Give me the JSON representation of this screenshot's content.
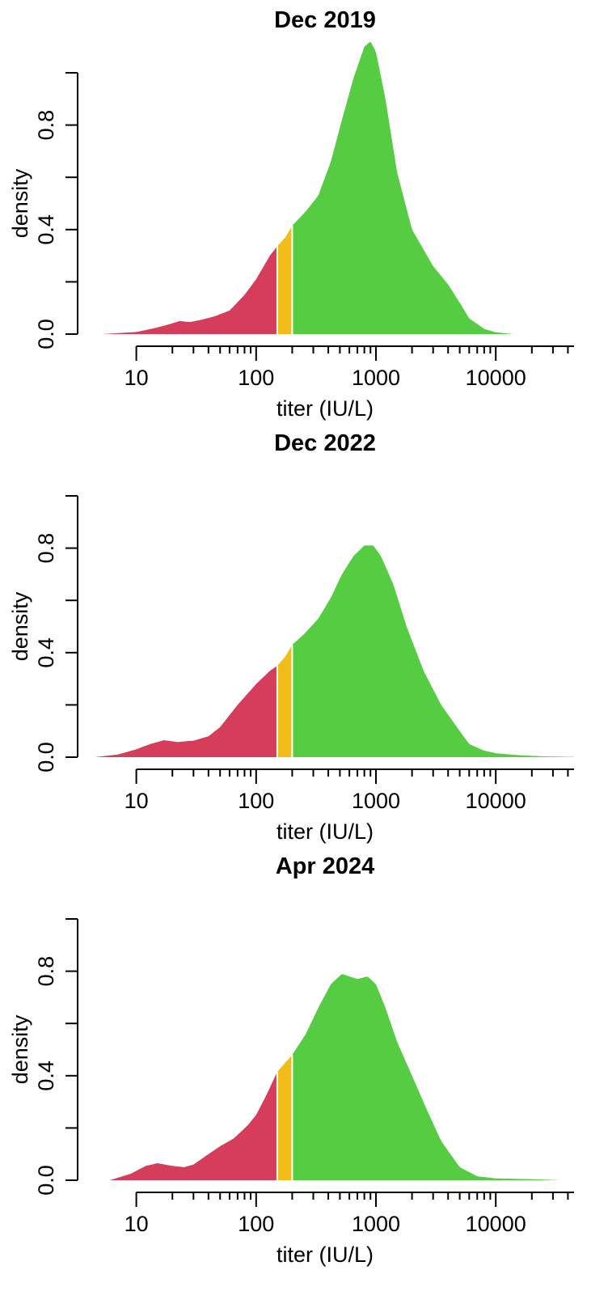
{
  "chart_data": [
    {
      "type": "area",
      "title": "Dec 2019",
      "xlabel": "titer (IU/L)",
      "ylabel": "density",
      "x_scale": "log10",
      "xlim": [
        5,
        45000
      ],
      "ylim": [
        0,
        1.0
      ],
      "x_ticks": [
        10,
        100,
        1000,
        10000
      ],
      "x_tick_labels": [
        "10",
        "100",
        "1000",
        "10000"
      ],
      "y_ticks": [
        0,
        0.2,
        0.4,
        0.6,
        0.8,
        1.0
      ],
      "y_tick_labels": [
        "0.0",
        "",
        "0.4",
        "",
        "0.8",
        ""
      ],
      "thresholds": [
        150,
        200
      ],
      "colors": {
        "low": "#d63d5b",
        "mid": "#f2bd1b",
        "high": "#55cc41"
      },
      "curve": [
        [
          5.2,
          0
        ],
        [
          10,
          0.008
        ],
        [
          14,
          0.022
        ],
        [
          19,
          0.038
        ],
        [
          23,
          0.05
        ],
        [
          28,
          0.046
        ],
        [
          35,
          0.055
        ],
        [
          45,
          0.068
        ],
        [
          60,
          0.09
        ],
        [
          80,
          0.15
        ],
        [
          100,
          0.21
        ],
        [
          130,
          0.3
        ],
        [
          150,
          0.336
        ],
        [
          175,
          0.37
        ],
        [
          200,
          0.415
        ],
        [
          260,
          0.47
        ],
        [
          330,
          0.53
        ],
        [
          420,
          0.66
        ],
        [
          520,
          0.82
        ],
        [
          650,
          0.98
        ],
        [
          800,
          1.1
        ],
        [
          900,
          1.12
        ],
        [
          1000,
          1.08
        ],
        [
          1200,
          0.9
        ],
        [
          1500,
          0.62
        ],
        [
          2000,
          0.4
        ],
        [
          3000,
          0.26
        ],
        [
          4000,
          0.19
        ],
        [
          5000,
          0.12
        ],
        [
          6000,
          0.06
        ],
        [
          8000,
          0.02
        ],
        [
          10000,
          0.007
        ],
        [
          14000,
          0
        ]
      ]
    },
    {
      "type": "area",
      "title": "Dec 2022",
      "xlabel": "titer (IU/L)",
      "ylabel": "density",
      "x_scale": "log10",
      "xlim": [
        5,
        45000
      ],
      "ylim": [
        0,
        1.0
      ],
      "x_ticks": [
        10,
        100,
        1000,
        10000
      ],
      "x_tick_labels": [
        "10",
        "100",
        "1000",
        "10000"
      ],
      "y_ticks": [
        0,
        0.2,
        0.4,
        0.6,
        0.8,
        1.0
      ],
      "y_tick_labels": [
        "0.0",
        "",
        "0.4",
        "",
        "0.8",
        ""
      ],
      "thresholds": [
        150,
        200
      ],
      "colors": {
        "low": "#d63d5b",
        "mid": "#f2bd1b",
        "high": "#55cc41"
      },
      "curve": [
        [
          4.5,
          0
        ],
        [
          7,
          0.01
        ],
        [
          10,
          0.03
        ],
        [
          13,
          0.05
        ],
        [
          17,
          0.065
        ],
        [
          22,
          0.058
        ],
        [
          30,
          0.063
        ],
        [
          40,
          0.08
        ],
        [
          50,
          0.115
        ],
        [
          70,
          0.2
        ],
        [
          100,
          0.28
        ],
        [
          130,
          0.33
        ],
        [
          150,
          0.35
        ],
        [
          175,
          0.385
        ],
        [
          200,
          0.43
        ],
        [
          250,
          0.47
        ],
        [
          330,
          0.53
        ],
        [
          420,
          0.61
        ],
        [
          520,
          0.7
        ],
        [
          650,
          0.77
        ],
        [
          800,
          0.81
        ],
        [
          950,
          0.81
        ],
        [
          1100,
          0.77
        ],
        [
          1400,
          0.66
        ],
        [
          1800,
          0.5
        ],
        [
          2500,
          0.33
        ],
        [
          3500,
          0.2
        ],
        [
          5000,
          0.1
        ],
        [
          6000,
          0.05
        ],
        [
          8000,
          0.025
        ],
        [
          10000,
          0.015
        ],
        [
          15000,
          0.008
        ],
        [
          25000,
          0.003
        ],
        [
          45000,
          0.001
        ]
      ]
    },
    {
      "type": "area",
      "title": "Apr 2024",
      "xlabel": "titer (IU/L)",
      "ylabel": "density",
      "x_scale": "log10",
      "xlim": [
        5,
        45000
      ],
      "ylim": [
        0,
        1.0
      ],
      "x_ticks": [
        10,
        100,
        1000,
        10000
      ],
      "x_tick_labels": [
        "10",
        "100",
        "1000",
        "10000"
      ],
      "y_ticks": [
        0,
        0.2,
        0.4,
        0.6,
        0.8,
        1.0
      ],
      "y_tick_labels": [
        "0.0",
        "",
        "0.4",
        "",
        "0.8",
        ""
      ],
      "thresholds": [
        150,
        200
      ],
      "colors": {
        "low": "#d63d5b",
        "mid": "#f2bd1b",
        "high": "#55cc41"
      },
      "curve": [
        [
          6,
          0
        ],
        [
          9,
          0.025
        ],
        [
          12,
          0.055
        ],
        [
          15,
          0.065
        ],
        [
          20,
          0.055
        ],
        [
          25,
          0.05
        ],
        [
          30,
          0.06
        ],
        [
          40,
          0.1
        ],
        [
          50,
          0.13
        ],
        [
          65,
          0.16
        ],
        [
          85,
          0.21
        ],
        [
          100,
          0.25
        ],
        [
          120,
          0.32
        ],
        [
          150,
          0.415
        ],
        [
          175,
          0.45
        ],
        [
          200,
          0.48
        ],
        [
          260,
          0.56
        ],
        [
          330,
          0.66
        ],
        [
          420,
          0.75
        ],
        [
          520,
          0.79
        ],
        [
          600,
          0.78
        ],
        [
          700,
          0.77
        ],
        [
          850,
          0.78
        ],
        [
          1000,
          0.75
        ],
        [
          1200,
          0.66
        ],
        [
          1500,
          0.53
        ],
        [
          2000,
          0.4
        ],
        [
          2600,
          0.28
        ],
        [
          3500,
          0.15
        ],
        [
          5000,
          0.05
        ],
        [
          7000,
          0.015
        ],
        [
          10000,
          0.007
        ],
        [
          20000,
          0.004
        ],
        [
          35000,
          0
        ]
      ]
    }
  ]
}
